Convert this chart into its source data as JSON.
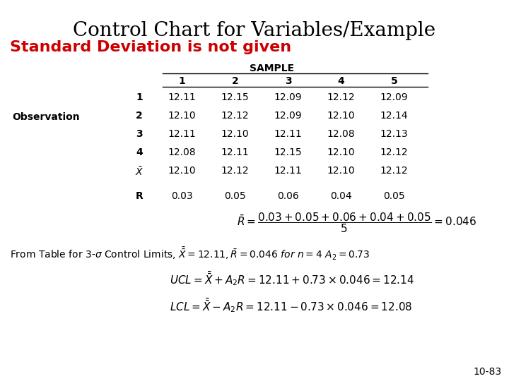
{
  "title": "Control Chart for Variables/Example",
  "subtitle": "Standard Deviation is not given",
  "subtitle_color": "#cc0000",
  "background_color": "#ffffff",
  "table_header": "SAMPLE",
  "col_labels": [
    "1",
    "2",
    "3",
    "4",
    "5"
  ],
  "obs_label": "Observation",
  "table_data": [
    [
      "12.11",
      "12.15",
      "12.09",
      "12.12",
      "12.09"
    ],
    [
      "12.10",
      "12.12",
      "12.09",
      "12.10",
      "12.14"
    ],
    [
      "12.11",
      "12.10",
      "12.11",
      "12.08",
      "12.13"
    ],
    [
      "12.08",
      "12.11",
      "12.15",
      "12.10",
      "12.12"
    ],
    [
      "12.10",
      "12.12",
      "12.11",
      "12.10",
      "12.12"
    ]
  ],
  "r_label": "R",
  "r_values": [
    "0.03",
    "0.05",
    "0.06",
    "0.04",
    "0.05"
  ],
  "page_num": "10-83"
}
